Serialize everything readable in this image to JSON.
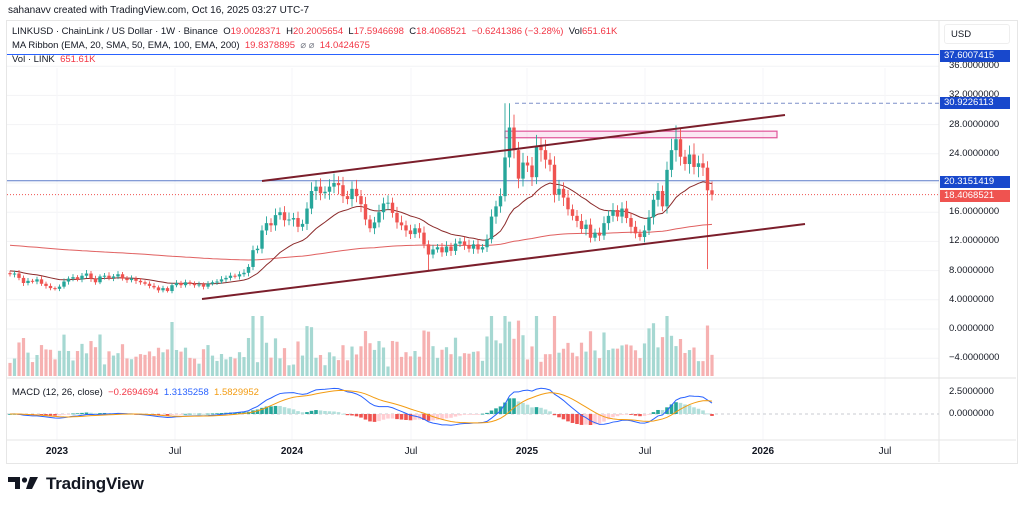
{
  "credit": "sahanavv created with TradingView.com, Oct 16, 2025 03:27 UTC-7",
  "legend": {
    "symbol": "LINKUSD · ChainLink / US Dollar · 1W · Binance",
    "o_label": "O",
    "o": "19.0028371",
    "h_label": "H",
    "h": "20.2005654",
    "l_label": "L",
    "l": "17.5946698",
    "c_label": "C",
    "c": "18.4068521",
    "change": "−0.6241386 (−3.28%)",
    "vol_label": "Vol",
    "vol": "651.61K",
    "ma_ribbon": "MA Ribbon (EMA, 20, SMA, 50, EMA, 100, EMA, 200)",
    "ma_val1": "19.8378895",
    "ma_na1": "⌀",
    "ma_na2": "⌀",
    "ma_val2": "14.0424675",
    "vol_indicator": "Vol · LINK",
    "vol_indicator_val": "651.61K",
    "macd": "MACD (12, 26, close)",
    "macd_hist": "−0.2694694",
    "macd_line": "1.3135258",
    "macd_signal": "1.5829952"
  },
  "price_axis": {
    "currency": "USD",
    "ticks": [
      "36.0000000",
      "32.0000000",
      "28.0000000",
      "24.0000000",
      "16.0000000",
      "12.0000000",
      "8.0000000",
      "4.0000000",
      "0.0000000",
      "−4.0000000"
    ],
    "macd_ticks": [
      "2.5000000",
      "0.0000000"
    ],
    "tags": {
      "resistance_high": "37.6007415",
      "ath_dashed": "30.9226113",
      "horizontal_level": "20.3151419",
      "last_price": "18.4068521"
    }
  },
  "time_axis": [
    {
      "label": "2023",
      "bold": true
    },
    {
      "label": "Jul",
      "bold": false
    },
    {
      "label": "2024",
      "bold": true
    },
    {
      "label": "Jul",
      "bold": false
    },
    {
      "label": "2025",
      "bold": true
    },
    {
      "label": "Jul",
      "bold": false
    },
    {
      "label": "2026",
      "bold": true
    },
    {
      "label": "Jul",
      "bold": false
    }
  ],
  "brand": "TradingView",
  "colors": {
    "up": "#26a69a",
    "down": "#ef5350",
    "blue": "#2962ff",
    "channel": "#7b1e2b",
    "box": "#e0559a",
    "ema200": "#e06060",
    "ema20": "#8b2a2a",
    "macd": "#2962ff",
    "signal": "#f39c12"
  },
  "chart_data": {
    "type": "candlestick",
    "symbol": "LINKUSD",
    "interval": "1W",
    "start_week": "2022-10-17",
    "ylim": [
      -4,
      38
    ],
    "grid": true,
    "closes": [
      7.5,
      7.6,
      7.0,
      6.3,
      6.6,
      6.5,
      6.8,
      6.2,
      5.9,
      5.6,
      5.5,
      5.8,
      6.5,
      6.9,
      7.1,
      6.8,
      7.3,
      7.6,
      6.9,
      6.4,
      7.2,
      7.3,
      7.0,
      7.2,
      7.5,
      6.9,
      6.7,
      6.9,
      6.6,
      6.4,
      6.2,
      5.9,
      5.7,
      5.3,
      5.6,
      5.2,
      6.0,
      6.3,
      6.0,
      6.4,
      6.2,
      6.0,
      6.1,
      5.8,
      6.2,
      6.4,
      6.5,
      6.8,
      7.0,
      7.3,
      7.2,
      7.5,
      7.7,
      8.5,
      10.8,
      11.0,
      13.5,
      14.5,
      14.2,
      15.6,
      16.0,
      14.9,
      15.0,
      15.2,
      14.0,
      14.4,
      16.5,
      18.9,
      19.5,
      18.6,
      18.8,
      19.5,
      20.0,
      19.7,
      18.2,
      17.8,
      19.2,
      18.2,
      17.1,
      15.0,
      13.8,
      14.6,
      16.0,
      17.2,
      17.3,
      15.9,
      14.6,
      14.2,
      13.5,
      13.0,
      13.8,
      13.2,
      11.6,
      10.2,
      10.9,
      11.2,
      10.5,
      11.3,
      10.7,
      11.7,
      12.0,
      11.5,
      11.0,
      11.6,
      10.9,
      11.2,
      12.3,
      15.4,
      16.8,
      18.2,
      23.5,
      27.6,
      24.5,
      20.6,
      22.8,
      22.4,
      20.8,
      25.0,
      24.5,
      23.2,
      22.5,
      18.4,
      19.2,
      18.0,
      16.4,
      15.5,
      14.8,
      13.7,
      14.3,
      12.5,
      13.2,
      12.8,
      14.5,
      15.5,
      16.3,
      15.4,
      16.5,
      15.2,
      14.0,
      13.1,
      12.6,
      13.5,
      15.3,
      17.7,
      18.9,
      16.8,
      21.8,
      24.5,
      26.0,
      23.6,
      22.6,
      23.9,
      22.2,
      22.7,
      22.1,
      19.0,
      18.4
    ],
    "last_candle": {
      "open": 19.0028371,
      "high": 20.2005654,
      "low": 17.5946698,
      "close": 18.4068521
    },
    "horizontal_levels": [
      37.6007415,
      30.9226113,
      20.3151419,
      18.4068521
    ],
    "channel_upper": [
      {
        "date": "2023-11",
        "price": 20.3
      },
      {
        "date": "2026-01",
        "price": 29.6
      }
    ],
    "channel_lower": [
      {
        "date": "2023-07",
        "price": 4.1
      },
      {
        "date": "2026-02",
        "price": 14.4
      }
    ],
    "resistance_zone": [
      26.2,
      27.1
    ]
  }
}
